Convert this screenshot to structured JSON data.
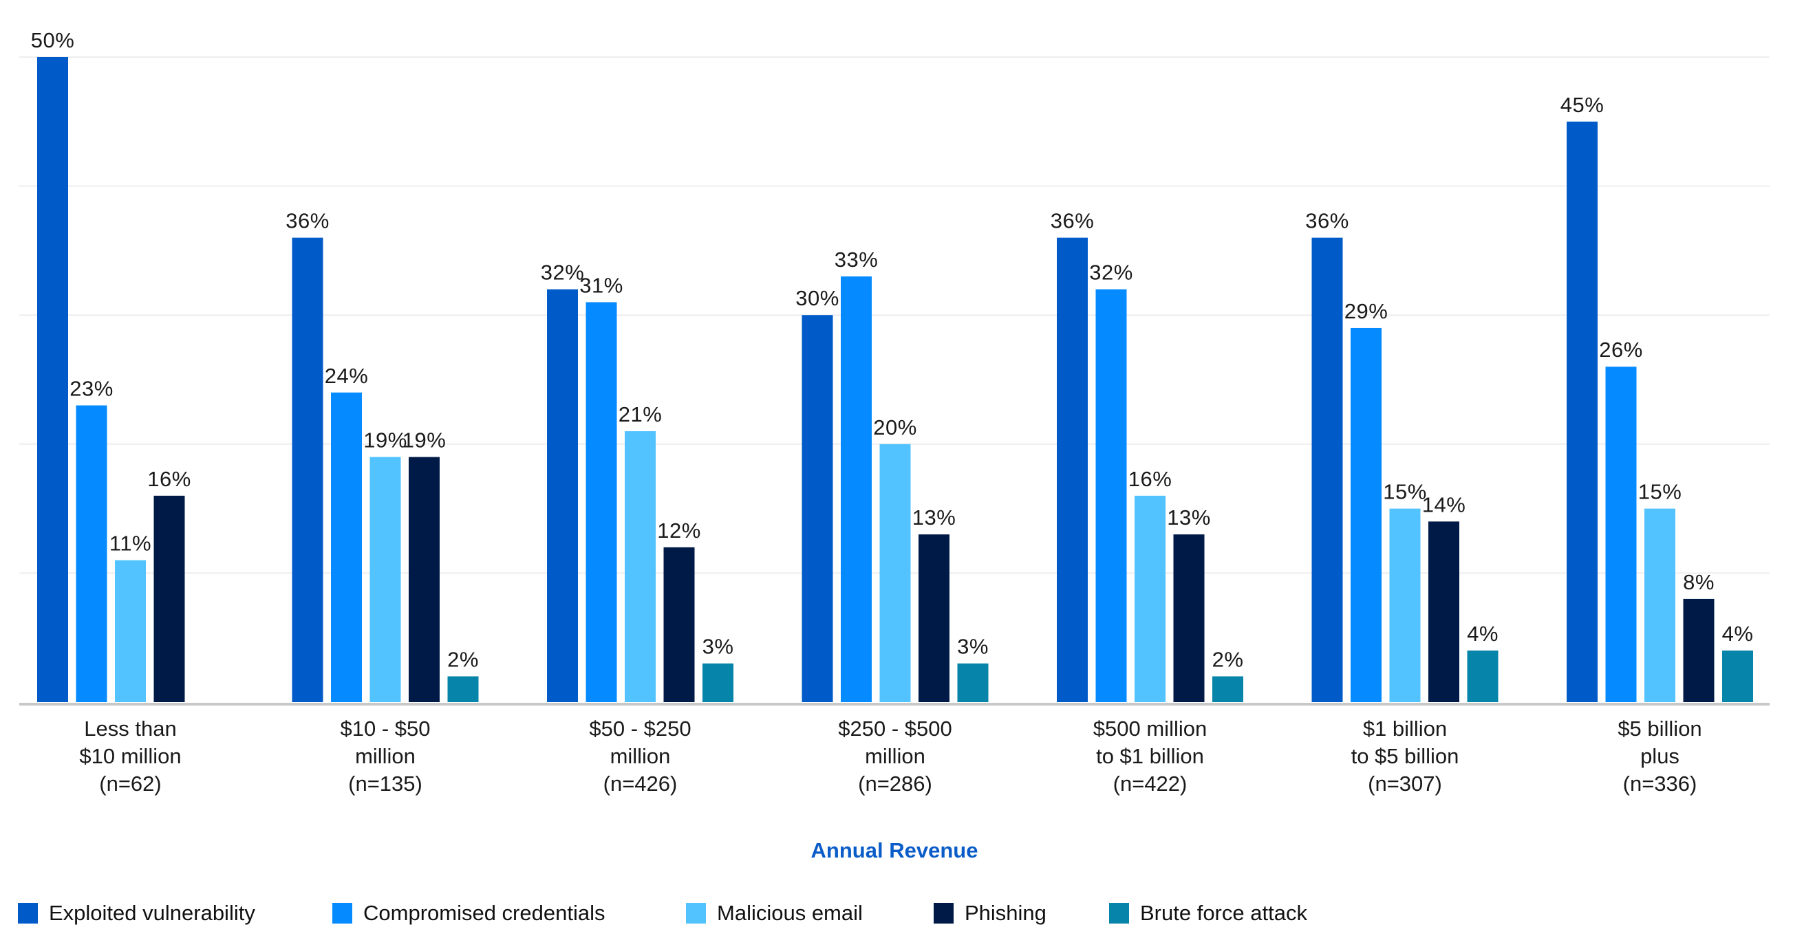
{
  "chart_data": {
    "type": "bar",
    "title": "",
    "xlabel": "Annual Revenue",
    "ylabel": "",
    "ylim": [
      0,
      50
    ],
    "grid": true,
    "gridline_step": 10,
    "legend_position": "bottom-left",
    "categories": [
      [
        "Less than",
        "$10 million",
        "(n=62)"
      ],
      [
        "$10 - $50",
        "million",
        "(n=135)"
      ],
      [
        "$50 - $250",
        "million",
        "(n=426)"
      ],
      [
        "$250 - $500",
        "million",
        "(n=286)"
      ],
      [
        "$500 million",
        "to $1 billion",
        "(n=422)"
      ],
      [
        "$1 billion",
        "to $5 billion",
        "(n=307)"
      ],
      [
        "$5 billion",
        "plus",
        "(n=336)"
      ]
    ],
    "series": [
      {
        "name": "Exploited vulnerability",
        "color": "#005BC8",
        "values": [
          50,
          36,
          32,
          30,
          36,
          36,
          45
        ]
      },
      {
        "name": "Compromised credentials",
        "color": "#058BFF",
        "values": [
          23,
          24,
          31,
          33,
          32,
          29,
          26
        ]
      },
      {
        "name": "Malicious email",
        "color": "#52C3FF",
        "values": [
          11,
          19,
          21,
          20,
          16,
          15,
          15
        ]
      },
      {
        "name": "Phishing",
        "color": "#001A47",
        "values": [
          16,
          19,
          12,
          13,
          13,
          14,
          8
        ]
      },
      {
        "name": "Brute force attack",
        "color": "#0784AA",
        "values": [
          null,
          2,
          3,
          3,
          2,
          4,
          4
        ]
      }
    ],
    "value_suffix": "%"
  },
  "colors": {
    "gridline": "#EEEEEE",
    "axis": "#C8C8C8",
    "axis_title": "#0A5CC8"
  }
}
